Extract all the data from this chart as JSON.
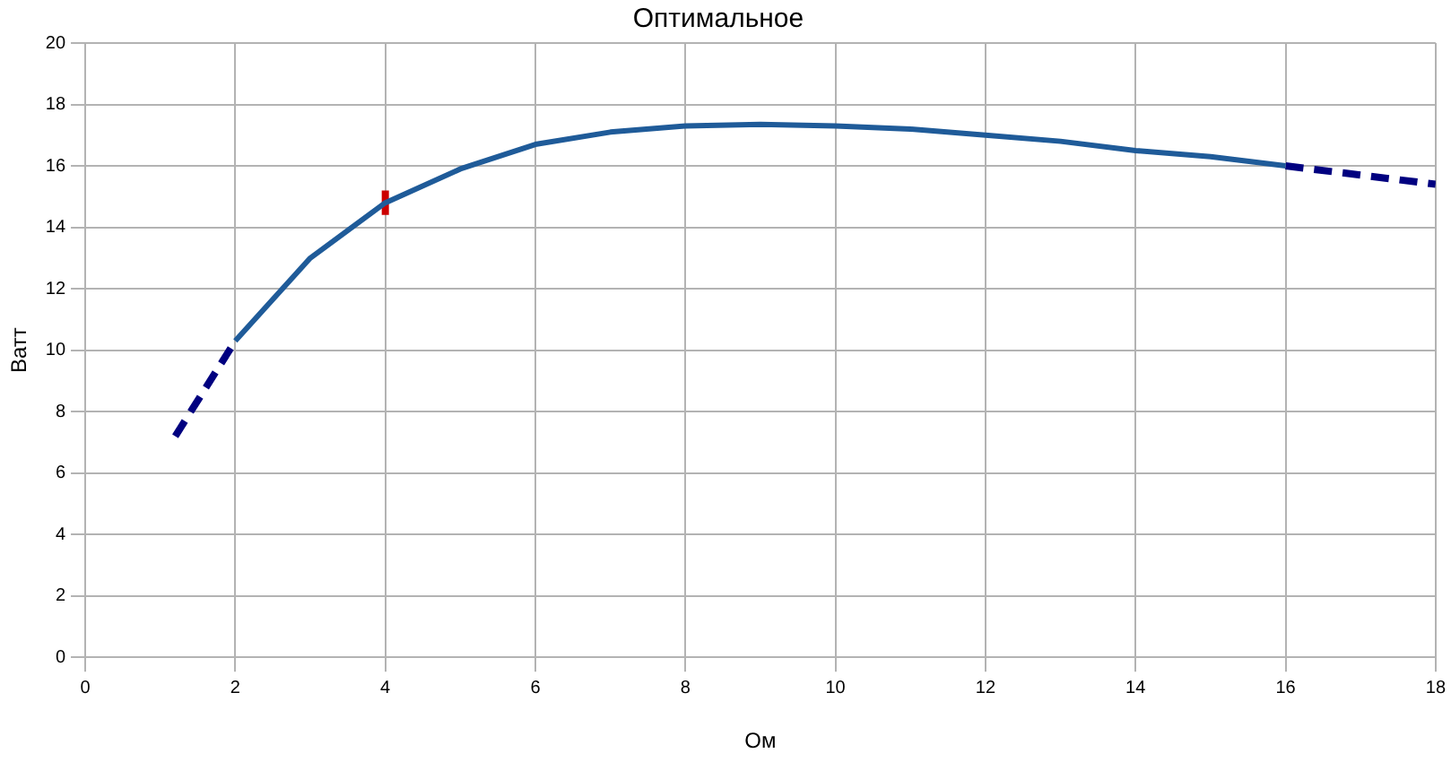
{
  "chart_data": {
    "type": "line",
    "title": "Оптимальное",
    "xlabel": "Ом",
    "ylabel": "Ватт",
    "xlim": [
      0,
      18
    ],
    "xticks": [
      0,
      2,
      4,
      6,
      8,
      10,
      12,
      14,
      16,
      18
    ],
    "ylim": [
      0,
      20
    ],
    "yticks": [
      0,
      2,
      4,
      6,
      8,
      10,
      12,
      14,
      16,
      18,
      20
    ],
    "grid": true,
    "legend": false,
    "marker": "none",
    "series": [
      {
        "color": "#1f5b99",
        "line_style": "solid",
        "x": [
          2,
          3,
          4,
          5,
          6,
          7,
          8,
          9,
          10,
          11,
          12,
          13,
          14,
          15,
          16
        ],
        "values": [
          10.3,
          13.0,
          14.8,
          15.9,
          16.7,
          17.1,
          17.3,
          17.35,
          17.3,
          17.2,
          17.0,
          16.8,
          16.5,
          16.3,
          16.0
        ]
      },
      {
        "color": "#000080",
        "line_style": "dashed",
        "x": [
          1.2,
          2
        ],
        "values": [
          7.2,
          10.3
        ]
      },
      {
        "color": "#000080",
        "line_style": "dashed",
        "x": [
          16,
          17,
          18
        ],
        "values": [
          16.0,
          15.7,
          15.4
        ]
      },
      {
        "color": "#cc0000",
        "line_style": "solid",
        "x": [
          4,
          4
        ],
        "values": [
          14.4,
          15.2
        ]
      }
    ]
  }
}
